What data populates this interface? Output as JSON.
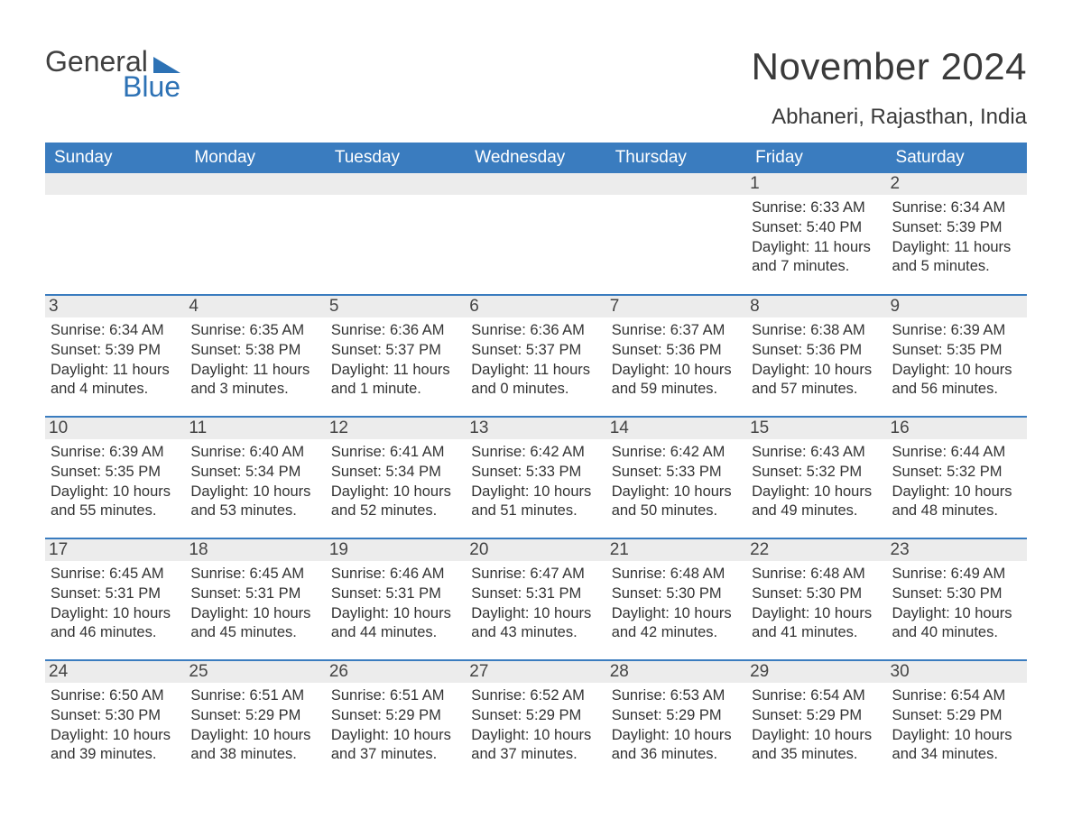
{
  "brand": {
    "word1": "General",
    "word2": "Blue",
    "word1_color": "#404040",
    "word2_color": "#2d72b5",
    "mark_color": "#2d72b5"
  },
  "title": "November 2024",
  "location": "Abhaneri, Rajasthan, India",
  "colors": {
    "header_bg": "#3a7cbf",
    "header_text": "#ffffff",
    "daynum_bg": "#ececec",
    "rule": "#3a7cbf",
    "body_text": "#333333",
    "page_bg": "#ffffff"
  },
  "typography": {
    "title_fontsize": 42,
    "location_fontsize": 24,
    "header_fontsize": 19,
    "daynum_fontsize": 19,
    "body_fontsize": 16.5,
    "font_family": "Arial"
  },
  "columns": [
    "Sunday",
    "Monday",
    "Tuesday",
    "Wednesday",
    "Thursday",
    "Friday",
    "Saturday"
  ],
  "labels": {
    "sunrise": "Sunrise",
    "sunset": "Sunset",
    "daylight": "Daylight"
  },
  "weeks": [
    [
      null,
      null,
      null,
      null,
      null,
      {
        "day": 1,
        "sunrise": "6:33 AM",
        "sunset": "5:40 PM",
        "daylight": "11 hours and 7 minutes."
      },
      {
        "day": 2,
        "sunrise": "6:34 AM",
        "sunset": "5:39 PM",
        "daylight": "11 hours and 5 minutes."
      }
    ],
    [
      {
        "day": 3,
        "sunrise": "6:34 AM",
        "sunset": "5:39 PM",
        "daylight": "11 hours and 4 minutes."
      },
      {
        "day": 4,
        "sunrise": "6:35 AM",
        "sunset": "5:38 PM",
        "daylight": "11 hours and 3 minutes."
      },
      {
        "day": 5,
        "sunrise": "6:36 AM",
        "sunset": "5:37 PM",
        "daylight": "11 hours and 1 minute."
      },
      {
        "day": 6,
        "sunrise": "6:36 AM",
        "sunset": "5:37 PM",
        "daylight": "11 hours and 0 minutes."
      },
      {
        "day": 7,
        "sunrise": "6:37 AM",
        "sunset": "5:36 PM",
        "daylight": "10 hours and 59 minutes."
      },
      {
        "day": 8,
        "sunrise": "6:38 AM",
        "sunset": "5:36 PM",
        "daylight": "10 hours and 57 minutes."
      },
      {
        "day": 9,
        "sunrise": "6:39 AM",
        "sunset": "5:35 PM",
        "daylight": "10 hours and 56 minutes."
      }
    ],
    [
      {
        "day": 10,
        "sunrise": "6:39 AM",
        "sunset": "5:35 PM",
        "daylight": "10 hours and 55 minutes."
      },
      {
        "day": 11,
        "sunrise": "6:40 AM",
        "sunset": "5:34 PM",
        "daylight": "10 hours and 53 minutes."
      },
      {
        "day": 12,
        "sunrise": "6:41 AM",
        "sunset": "5:34 PM",
        "daylight": "10 hours and 52 minutes."
      },
      {
        "day": 13,
        "sunrise": "6:42 AM",
        "sunset": "5:33 PM",
        "daylight": "10 hours and 51 minutes."
      },
      {
        "day": 14,
        "sunrise": "6:42 AM",
        "sunset": "5:33 PM",
        "daylight": "10 hours and 50 minutes."
      },
      {
        "day": 15,
        "sunrise": "6:43 AM",
        "sunset": "5:32 PM",
        "daylight": "10 hours and 49 minutes."
      },
      {
        "day": 16,
        "sunrise": "6:44 AM",
        "sunset": "5:32 PM",
        "daylight": "10 hours and 48 minutes."
      }
    ],
    [
      {
        "day": 17,
        "sunrise": "6:45 AM",
        "sunset": "5:31 PM",
        "daylight": "10 hours and 46 minutes."
      },
      {
        "day": 18,
        "sunrise": "6:45 AM",
        "sunset": "5:31 PM",
        "daylight": "10 hours and 45 minutes."
      },
      {
        "day": 19,
        "sunrise": "6:46 AM",
        "sunset": "5:31 PM",
        "daylight": "10 hours and 44 minutes."
      },
      {
        "day": 20,
        "sunrise": "6:47 AM",
        "sunset": "5:31 PM",
        "daylight": "10 hours and 43 minutes."
      },
      {
        "day": 21,
        "sunrise": "6:48 AM",
        "sunset": "5:30 PM",
        "daylight": "10 hours and 42 minutes."
      },
      {
        "day": 22,
        "sunrise": "6:48 AM",
        "sunset": "5:30 PM",
        "daylight": "10 hours and 41 minutes."
      },
      {
        "day": 23,
        "sunrise": "6:49 AM",
        "sunset": "5:30 PM",
        "daylight": "10 hours and 40 minutes."
      }
    ],
    [
      {
        "day": 24,
        "sunrise": "6:50 AM",
        "sunset": "5:30 PM",
        "daylight": "10 hours and 39 minutes."
      },
      {
        "day": 25,
        "sunrise": "6:51 AM",
        "sunset": "5:29 PM",
        "daylight": "10 hours and 38 minutes."
      },
      {
        "day": 26,
        "sunrise": "6:51 AM",
        "sunset": "5:29 PM",
        "daylight": "10 hours and 37 minutes."
      },
      {
        "day": 27,
        "sunrise": "6:52 AM",
        "sunset": "5:29 PM",
        "daylight": "10 hours and 37 minutes."
      },
      {
        "day": 28,
        "sunrise": "6:53 AM",
        "sunset": "5:29 PM",
        "daylight": "10 hours and 36 minutes."
      },
      {
        "day": 29,
        "sunrise": "6:54 AM",
        "sunset": "5:29 PM",
        "daylight": "10 hours and 35 minutes."
      },
      {
        "day": 30,
        "sunrise": "6:54 AM",
        "sunset": "5:29 PM",
        "daylight": "10 hours and 34 minutes."
      }
    ]
  ]
}
